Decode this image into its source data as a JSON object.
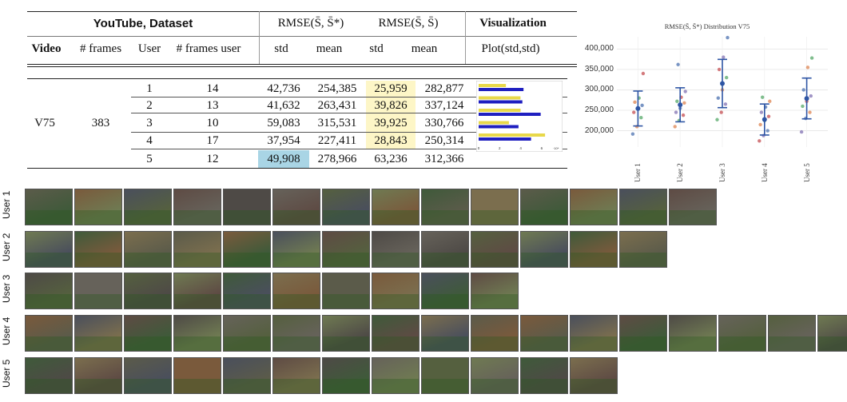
{
  "table": {
    "group_headers": {
      "dataset": "YouTube, Dataset",
      "rmse_star": "RMSE(S̄, S̄*)",
      "rmse": "RMSE(S̄, S̄)",
      "visualization": "Visualization"
    },
    "columns": {
      "video": "Video",
      "frames": "# frames",
      "user": "User",
      "frames_user": "# frames user",
      "std1": "std",
      "mean1": "mean",
      "std2": "std",
      "mean2": "mean",
      "plot": "Plot(std,std)"
    },
    "video": "V75",
    "frames": "383",
    "rows": [
      {
        "user": "1",
        "frames_user": "14",
        "std1": "42,736",
        "mean1": "254,385",
        "std2": "25,959",
        "mean2": "282,877"
      },
      {
        "user": "2",
        "frames_user": "13",
        "std1": "41,632",
        "mean1": "263,431",
        "std2": "39,826",
        "mean2": "337,124"
      },
      {
        "user": "3",
        "frames_user": "10",
        "std1": "59,083",
        "mean1": "315,531",
        "std2": "39,925",
        "mean2": "330,766"
      },
      {
        "user": "4",
        "frames_user": "17",
        "std1": "37,954",
        "mean1": "227,411",
        "std2": "28,843",
        "mean2": "250,314"
      },
      {
        "user": "5",
        "frames_user": "12",
        "std1": "49,908",
        "mean1": "278,966",
        "std2": "63,236",
        "mean2": "312,366"
      }
    ],
    "highlight_yellow": "#fdf6c7",
    "highlight_blue": "#a9d5e5"
  },
  "chart_data": [
    {
      "type": "bar",
      "orientation": "horizontal",
      "categories": [
        "1",
        "2",
        "3",
        "4",
        "5"
      ],
      "series": [
        {
          "color": "#e8d84a",
          "values": [
            25959,
            39826,
            39925,
            28843,
            63236
          ]
        },
        {
          "color": "#1f1fc0",
          "values": [
            42736,
            41632,
            59083,
            37954,
            49908
          ]
        }
      ],
      "xticks": [
        "0",
        "2",
        "4",
        "6"
      ],
      "xunit": "·10⁴",
      "xlim": [
        0,
        70000
      ]
    },
    {
      "type": "scatter",
      "title": "RMSE(S̄, S̄*) Distribution V75",
      "categories": [
        "User 1",
        "User 2",
        "User 3",
        "User 4",
        "User 5"
      ],
      "yticks": [
        "200,000",
        "250,000",
        "300,000",
        "350,000",
        "400,000"
      ],
      "ylim": [
        160000,
        430000
      ],
      "colors": [
        "#4c72b0",
        "#dd8452",
        "#55a868",
        "#c44e52",
        "#8172b3"
      ],
      "mean": [
        254385,
        263431,
        315531,
        227411,
        278966
      ],
      "std": [
        42736,
        41632,
        59083,
        37954,
        49908
      ],
      "points": [
        [
          192000,
          210000,
          232000,
          245000,
          255000,
          262000,
          270000,
          280000,
          340000
        ],
        [
          210000,
          225000,
          238000,
          245000,
          255000,
          268000,
          272000,
          282000,
          296000,
          362000
        ],
        [
          227000,
          245000,
          265000,
          280000,
          300000,
          330000,
          350000,
          380000,
          428000
        ],
        [
          175000,
          188000,
          200000,
          215000,
          225000,
          235000,
          245000,
          258000,
          272000,
          282000
        ],
        [
          197000,
          230000,
          245000,
          260000,
          272000,
          285000,
          300000,
          355000,
          378000
        ]
      ]
    }
  ],
  "filmstrips": [
    {
      "label": "User 1",
      "frames": 14
    },
    {
      "label": "User 2",
      "frames": 13
    },
    {
      "label": "User 3",
      "frames": 10
    },
    {
      "label": "User 4",
      "frames": 17
    },
    {
      "label": "User 5",
      "frames": 12
    }
  ]
}
